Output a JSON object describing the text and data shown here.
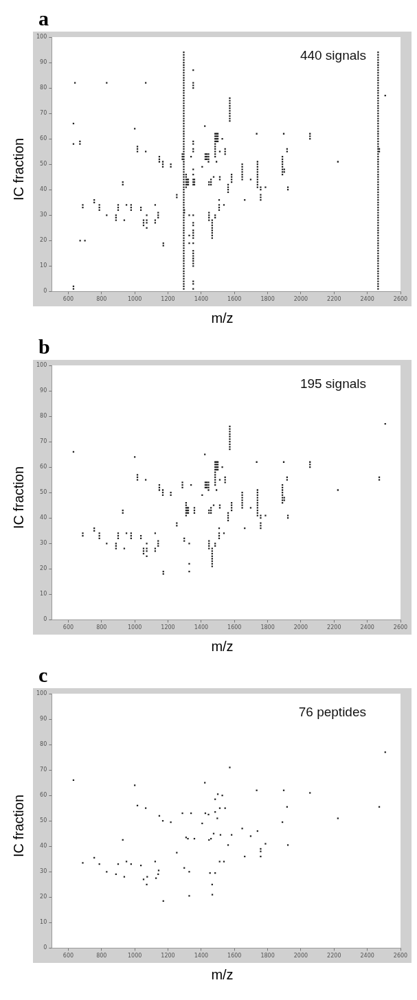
{
  "chart_data": [
    {
      "type": "scatter",
      "title": "a",
      "xlabel": "m/z",
      "ylabel": "IC fraction",
      "annotations": [
        "440 signals"
      ],
      "color": "#222222",
      "marker": "square",
      "grid": false,
      "xlim": [
        500,
        2600
      ],
      "xticks": [
        600,
        800,
        1000,
        1200,
        1400,
        1600,
        1800,
        2000,
        2200,
        2400,
        2600
      ],
      "ylim": [
        0,
        100
      ],
      "yticks": [
        0,
        10,
        20,
        30,
        40,
        50,
        60,
        70,
        80,
        90,
        100
      ],
      "x": [
        631,
        687,
        687,
        756,
        756,
        787,
        787,
        787,
        831,
        887,
        887,
        887,
        900,
        900,
        900,
        928,
        928,
        937,
        950,
        978,
        978,
        978,
        1000,
        1016,
        1016,
        1016,
        1037,
        1037,
        1053,
        1053,
        1053,
        1066,
        1072,
        1072,
        1072,
        1072,
        1123,
        1123,
        1123,
        1141,
        1141,
        1141,
        1148,
        1148,
        1148,
        1169,
        1169,
        1169,
        1172,
        1172,
        1217,
        1217,
        1253,
        1253,
        1287,
        1287,
        1287,
        1298,
        1298,
        1309,
        1309,
        1309,
        1309,
        1309,
        1309,
        1316,
        1316,
        1316,
        1322,
        1322,
        1322,
        1328,
        1328,
        1328,
        1339,
        1359,
        1359,
        1359,
        1406,
        1422,
        1425,
        1425,
        1425,
        1434,
        1434,
        1434,
        1444,
        1444,
        1444,
        1444,
        1447,
        1447,
        1447,
        1447,
        1447,
        1447,
        1459,
        1459,
        1459,
        1466,
        1466,
        1466,
        1466,
        1466,
        1466,
        1466,
        1466,
        1475,
        1484,
        1484,
        1484,
        1484,
        1484,
        1484,
        1484,
        1484,
        1484,
        1484,
        1484,
        1484,
        1492,
        1492,
        1492,
        1492,
        1492,
        1500,
        1500,
        1500,
        1500,
        1508,
        1508,
        1508,
        1508,
        1512,
        1512,
        1512,
        1527,
        1537,
        1544,
        1544,
        1544,
        1562,
        1562,
        1562,
        1562,
        1572,
        1572,
        1572,
        1572,
        1572,
        1572,
        1572,
        1572,
        1572,
        1572,
        1583,
        1583,
        1583,
        1583,
        1647,
        1647,
        1647,
        1647,
        1647,
        1647,
        1647,
        1662,
        1698,
        1734,
        1739,
        1739,
        1739,
        1739,
        1739,
        1739,
        1739,
        1739,
        1739,
        1739,
        1739,
        1758,
        1758,
        1758,
        1758,
        1758,
        1787,
        1889,
        1889,
        1889,
        1889,
        1889,
        1889,
        1889,
        1889,
        1897,
        1900,
        1900,
        1917,
        1917,
        1922,
        1922,
        2055,
        2055,
        2055,
        2223,
        2472,
        2472,
        2508,
        631,
        631,
        631,
        640,
        670,
        670,
        671,
        700,
        831,
        1066,
        1352,
        1352,
        1352,
        1352,
        1352,
        1352,
        1352,
        1352,
        1352,
        1352,
        1352,
        1352,
        1352,
        1352,
        1352,
        1352,
        1352,
        1352,
        1352,
        1352,
        1352,
        1352,
        1352,
        1352,
        1352,
        1352,
        1352,
        1352,
        1352,
        1352,
        1352,
        1295,
        1295,
        1295,
        1295,
        1295,
        1295,
        1295,
        1295,
        1295,
        1295,
        1295,
        1295,
        1295,
        1295,
        1295,
        1295,
        1295,
        1295,
        1295,
        1295,
        1295,
        1295,
        1295,
        1295,
        1295,
        1295,
        1295,
        1295,
        1295,
        1295,
        1295,
        1295,
        1295,
        1295,
        1295,
        1295,
        1295,
        1295,
        1295,
        1295,
        1295,
        1295,
        1295,
        1295,
        1295,
        1295,
        1295,
        1295,
        1295,
        1295,
        1295,
        1295,
        1295,
        1295,
        1295,
        1295,
        1295,
        1295,
        1295,
        1295,
        1295,
        1295,
        1295,
        1295,
        1295,
        1295,
        1295,
        1295,
        1295,
        1295,
        1295,
        1295,
        1295,
        1295,
        1295,
        1295,
        1295,
        1295,
        1295,
        1295,
        1295,
        1295,
        1295,
        1295,
        1295,
        1295,
        1295,
        1295,
        1295,
        1295,
        1295,
        1295,
        1295,
        1295,
        2465,
        2465,
        2465,
        2465,
        2465,
        2465,
        2465,
        2465,
        2465,
        2465,
        2465,
        2465,
        2465,
        2465,
        2465,
        2465,
        2465,
        2465,
        2465,
        2465,
        2465,
        2465,
        2465,
        2465,
        2465,
        2465,
        2465,
        2465,
        2465,
        2465,
        2465,
        2465,
        2465,
        2465,
        2465,
        2465,
        2465,
        2465,
        2465,
        2465,
        2465,
        2465,
        2465,
        2465,
        2465,
        2465,
        2465,
        2465,
        2465,
        2465,
        2465,
        2465,
        2465,
        2465,
        2465,
        2465,
        2465,
        2465,
        2465,
        2465,
        2465,
        2465,
        2465,
        2465,
        2465,
        2465,
        2465,
        2465,
        2465,
        2465,
        2465,
        2465,
        2465,
        2465,
        2465,
        2465,
        2465,
        2465,
        2465,
        2465,
        2465,
        2465,
        2465,
        2465,
        2465,
        2465,
        2465,
        2465,
        2465,
        2465,
        2465,
        2465,
        2465,
        2465
      ],
      "values": [
        66,
        33,
        34,
        35,
        36,
        32,
        33,
        34,
        30,
        28,
        29,
        30,
        32,
        33,
        34,
        42,
        43,
        28,
        34,
        32,
        33,
        34,
        64,
        55,
        56,
        57,
        32,
        33,
        26,
        27,
        28,
        55,
        25,
        27,
        28,
        30,
        27,
        28,
        34,
        29,
        30,
        31,
        51,
        52,
        53,
        49,
        50,
        51,
        18,
        19,
        49,
        50,
        37,
        38,
        52,
        53,
        54,
        31,
        32,
        41,
        42,
        43,
        44,
        45,
        46,
        42,
        43,
        44,
        42,
        43,
        44,
        19,
        22,
        30,
        53,
        42,
        43,
        44,
        49,
        65,
        52,
        53,
        54,
        52,
        53,
        54,
        51,
        52,
        53,
        54,
        28,
        29,
        30,
        31,
        42,
        43,
        42,
        43,
        44,
        21,
        22,
        23,
        24,
        25,
        26,
        27,
        28,
        45,
        29,
        30,
        53,
        54,
        55,
        56,
        57,
        58,
        59,
        60,
        61,
        62,
        51,
        59,
        60,
        61,
        62,
        59,
        60,
        61,
        62,
        32,
        33,
        34,
        36,
        44,
        45,
        55,
        60,
        34,
        54,
        55,
        56,
        39,
        40,
        41,
        42,
        67,
        68,
        69,
        70,
        71,
        72,
        73,
        74,
        75,
        76,
        43,
        44,
        45,
        46,
        44,
        45,
        46,
        47,
        48,
        49,
        50,
        36,
        44,
        62,
        41,
        42,
        43,
        44,
        45,
        46,
        47,
        48,
        49,
        50,
        51,
        36,
        37,
        38,
        40,
        41,
        41,
        46,
        47,
        48,
        49,
        50,
        51,
        52,
        53,
        62,
        47,
        48,
        55,
        56,
        40,
        41,
        60,
        61,
        62,
        51,
        55,
        56,
        77,
        1,
        2,
        58,
        82,
        58,
        59,
        20,
        20,
        82,
        82,
        1,
        3,
        4,
        10,
        11,
        12,
        13,
        14,
        15,
        16,
        19,
        21,
        22,
        23,
        24,
        26,
        27,
        30,
        42,
        43,
        44,
        46,
        48,
        55,
        56,
        58,
        59,
        80,
        81,
        82,
        87,
        1,
        2,
        3,
        4,
        5,
        6,
        7,
        8,
        9,
        10,
        11,
        12,
        13,
        14,
        15,
        16,
        17,
        18,
        19,
        20,
        21,
        22,
        23,
        24,
        25,
        26,
        27,
        28,
        29,
        30,
        31,
        32,
        33,
        34,
        35,
        36,
        37,
        38,
        39,
        40,
        41,
        42,
        43,
        44,
        45,
        46,
        47,
        48,
        49,
        50,
        51,
        52,
        53,
        54,
        55,
        56,
        57,
        58,
        59,
        60,
        61,
        62,
        63,
        64,
        65,
        66,
        67,
        68,
        69,
        70,
        71,
        72,
        73,
        74,
        75,
        76,
        77,
        78,
        79,
        80,
        81,
        82,
        83,
        84,
        85,
        86,
        87,
        88,
        89,
        90,
        91,
        92,
        93,
        94,
        1,
        2,
        3,
        4,
        5,
        6,
        7,
        8,
        9,
        10,
        11,
        12,
        13,
        14,
        15,
        16,
        17,
        18,
        19,
        20,
        21,
        22,
        23,
        24,
        25,
        26,
        27,
        28,
        29,
        30,
        31,
        32,
        33,
        34,
        35,
        36,
        37,
        38,
        39,
        40,
        41,
        42,
        43,
        44,
        45,
        46,
        47,
        48,
        49,
        50,
        51,
        52,
        53,
        54,
        55,
        56,
        57,
        58,
        59,
        60,
        61,
        62,
        63,
        64,
        65,
        66,
        67,
        68,
        69,
        70,
        71,
        72,
        73,
        74,
        75,
        76,
        77,
        78,
        79,
        80,
        81,
        82,
        83,
        84,
        85,
        86,
        87,
        88,
        89,
        90,
        91,
        92,
        93,
        94
      ]
    },
    {
      "type": "scatter",
      "title": "b",
      "xlabel": "m/z",
      "ylabel": "IC fraction",
      "annotations": [
        "195 signals"
      ],
      "color": "#222222",
      "marker": "square",
      "grid": false,
      "xlim": [
        500,
        2600
      ],
      "xticks": [
        600,
        800,
        1000,
        1200,
        1400,
        1600,
        1800,
        2000,
        2200,
        2400,
        2600
      ],
      "ylim": [
        0,
        100
      ],
      "yticks": [
        0,
        10,
        20,
        30,
        40,
        50,
        60,
        70,
        80,
        90,
        100
      ],
      "x": [
        631,
        687,
        687,
        756,
        756,
        787,
        787,
        787,
        831,
        887,
        887,
        887,
        900,
        900,
        900,
        928,
        928,
        937,
        950,
        978,
        978,
        978,
        1000,
        1016,
        1016,
        1016,
        1037,
        1037,
        1053,
        1053,
        1053,
        1066,
        1072,
        1072,
        1072,
        1072,
        1123,
        1123,
        1123,
        1141,
        1141,
        1141,
        1148,
        1148,
        1148,
        1169,
        1169,
        1169,
        1172,
        1172,
        1217,
        1217,
        1253,
        1253,
        1287,
        1287,
        1287,
        1298,
        1298,
        1309,
        1309,
        1309,
        1309,
        1309,
        1309,
        1316,
        1316,
        1316,
        1322,
        1322,
        1322,
        1328,
        1328,
        1328,
        1339,
        1359,
        1359,
        1359,
        1406,
        1422,
        1425,
        1425,
        1425,
        1434,
        1434,
        1434,
        1444,
        1444,
        1444,
        1444,
        1447,
        1447,
        1447,
        1447,
        1447,
        1447,
        1459,
        1459,
        1459,
        1466,
        1466,
        1466,
        1466,
        1466,
        1466,
        1466,
        1466,
        1475,
        1484,
        1484,
        1484,
        1484,
        1484,
        1484,
        1484,
        1484,
        1484,
        1484,
        1484,
        1484,
        1492,
        1492,
        1492,
        1492,
        1492,
        1500,
        1500,
        1500,
        1500,
        1508,
        1508,
        1508,
        1508,
        1512,
        1512,
        1512,
        1527,
        1537,
        1544,
        1544,
        1544,
        1562,
        1562,
        1562,
        1562,
        1572,
        1572,
        1572,
        1572,
        1572,
        1572,
        1572,
        1572,
        1572,
        1572,
        1583,
        1583,
        1583,
        1583,
        1647,
        1647,
        1647,
        1647,
        1647,
        1647,
        1647,
        1662,
        1698,
        1734,
        1739,
        1739,
        1739,
        1739,
        1739,
        1739,
        1739,
        1739,
        1739,
        1739,
        1739,
        1758,
        1758,
        1758,
        1758,
        1758,
        1787,
        1889,
        1889,
        1889,
        1889,
        1889,
        1889,
        1889,
        1889,
        1897,
        1900,
        1900,
        1917,
        1917,
        1922,
        1922,
        2055,
        2055,
        2055,
        2223,
        2472,
        2472,
        2508
      ],
      "values": [
        66,
        33,
        34,
        35,
        36,
        32,
        33,
        34,
        30,
        28,
        29,
        30,
        32,
        33,
        34,
        42,
        43,
        28,
        34,
        32,
        33,
        34,
        64,
        55,
        56,
        57,
        32,
        33,
        26,
        27,
        28,
        55,
        25,
        27,
        28,
        30,
        27,
        28,
        34,
        29,
        30,
        31,
        51,
        52,
        53,
        49,
        50,
        51,
        18,
        19,
        49,
        50,
        37,
        38,
        52,
        53,
        54,
        31,
        32,
        41,
        42,
        43,
        44,
        45,
        46,
        42,
        43,
        44,
        42,
        43,
        44,
        19,
        22,
        30,
        53,
        42,
        43,
        44,
        49,
        65,
        52,
        53,
        54,
        52,
        53,
        54,
        51,
        52,
        53,
        54,
        28,
        29,
        30,
        31,
        42,
        43,
        42,
        43,
        44,
        21,
        22,
        23,
        24,
        25,
        26,
        27,
        28,
        45,
        29,
        30,
        53,
        54,
        55,
        56,
        57,
        58,
        59,
        60,
        61,
        62,
        51,
        59,
        60,
        61,
        62,
        59,
        60,
        61,
        62,
        32,
        33,
        34,
        36,
        44,
        45,
        55,
        60,
        34,
        54,
        55,
        56,
        39,
        40,
        41,
        42,
        67,
        68,
        69,
        70,
        71,
        72,
        73,
        74,
        75,
        76,
        43,
        44,
        45,
        46,
        44,
        45,
        46,
        47,
        48,
        49,
        50,
        36,
        44,
        62,
        41,
        42,
        43,
        44,
        45,
        46,
        47,
        48,
        49,
        50,
        51,
        36,
        37,
        38,
        40,
        41,
        41,
        46,
        47,
        48,
        49,
        50,
        51,
        52,
        53,
        62,
        47,
        48,
        55,
        56,
        40,
        41,
        60,
        61,
        62,
        51,
        55,
        56,
        77
      ]
    },
    {
      "type": "scatter",
      "title": "c",
      "xlabel": "m/z",
      "ylabel": "IC fraction",
      "annotations": [
        "76 peptides"
      ],
      "color": "#222222",
      "marker": "square",
      "grid": false,
      "xlim": [
        500,
        2600
      ],
      "xticks": [
        600,
        800,
        1000,
        1200,
        1400,
        1600,
        1800,
        2000,
        2200,
        2400,
        2600
      ],
      "ylim": [
        0,
        100
      ],
      "yticks": [
        0,
        10,
        20,
        30,
        40,
        50,
        60,
        70,
        80,
        90,
        100
      ],
      "x": [
        631,
        687,
        756,
        787,
        831,
        887,
        900,
        928,
        937,
        950,
        978,
        1000,
        1016,
        1037,
        1053,
        1066,
        1072,
        1075,
        1123,
        1128,
        1141,
        1144,
        1148,
        1169,
        1172,
        1217,
        1253,
        1287,
        1298,
        1309,
        1320,
        1328,
        1328,
        1339,
        1359,
        1406,
        1422,
        1425,
        1444,
        1447,
        1453,
        1459,
        1466,
        1467,
        1475,
        1484,
        1484,
        1484,
        1497,
        1500,
        1511,
        1512,
        1516,
        1527,
        1537,
        1544,
        1562,
        1572,
        1583,
        1647,
        1662,
        1698,
        1734,
        1739,
        1758,
        1758,
        1758,
        1787,
        1889,
        1897,
        1917,
        1922,
        2055,
        2223,
        2472,
        2508
      ],
      "values": [
        66,
        33.5,
        35.5,
        33,
        30,
        29,
        33,
        42.5,
        28,
        34,
        33,
        64,
        56,
        32.5,
        27,
        55,
        25,
        28,
        34,
        27.5,
        29,
        30.5,
        52,
        50,
        18.5,
        49.5,
        37.5,
        53,
        31.5,
        43.5,
        43,
        20.5,
        30,
        53,
        43,
        49,
        65,
        53,
        52.5,
        42.5,
        29.5,
        43,
        25,
        21,
        45,
        58.5,
        53.5,
        29.5,
        51,
        60.5,
        34,
        55,
        44.5,
        60,
        34,
        55,
        40.5,
        71,
        44.5,
        47,
        36,
        44,
        62,
        46,
        36,
        38,
        39,
        41,
        49.5,
        62,
        55.5,
        40.5,
        61,
        51,
        55.5,
        77
      ]
    }
  ]
}
